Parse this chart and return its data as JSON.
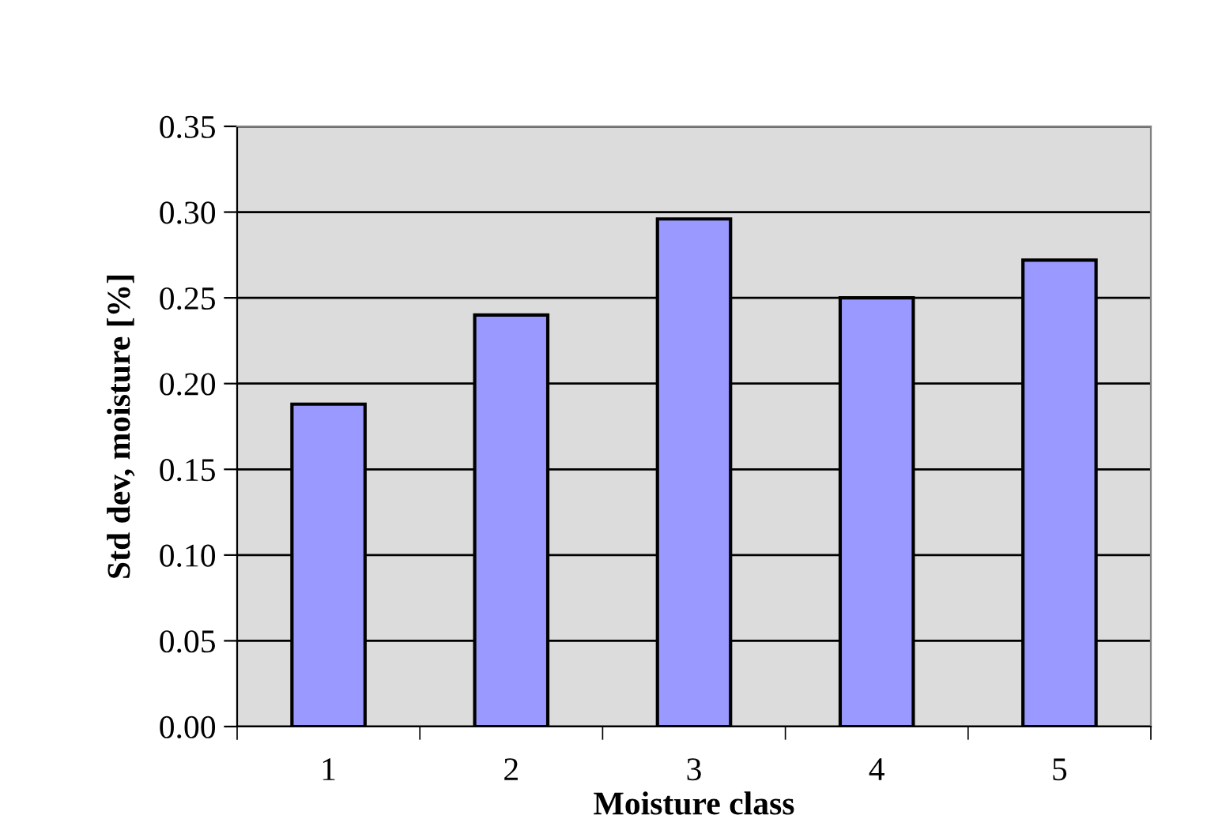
{
  "chart_data": {
    "type": "bar",
    "xlabel": "Moisture class",
    "ylabel": "Std dev, moisture [%]",
    "categories": [
      "1",
      "2",
      "3",
      "4",
      "5"
    ],
    "values": [
      0.188,
      0.24,
      0.296,
      0.25,
      0.272
    ],
    "color": "#9999ff",
    "ylim": [
      0,
      0.35
    ],
    "yticks": [
      {
        "value": 0,
        "label": "0.00"
      },
      {
        "value": 0.05,
        "label": "0.05"
      },
      {
        "value": 0.1,
        "label": "0.10"
      },
      {
        "value": 0.15,
        "label": "0.15"
      },
      {
        "value": 0.2,
        "label": "0.20"
      },
      {
        "value": 0.25,
        "label": "0.25"
      },
      {
        "value": 0.3,
        "label": "0.30"
      },
      {
        "value": 0.35,
        "label": "0.35"
      }
    ],
    "grid": "y"
  }
}
